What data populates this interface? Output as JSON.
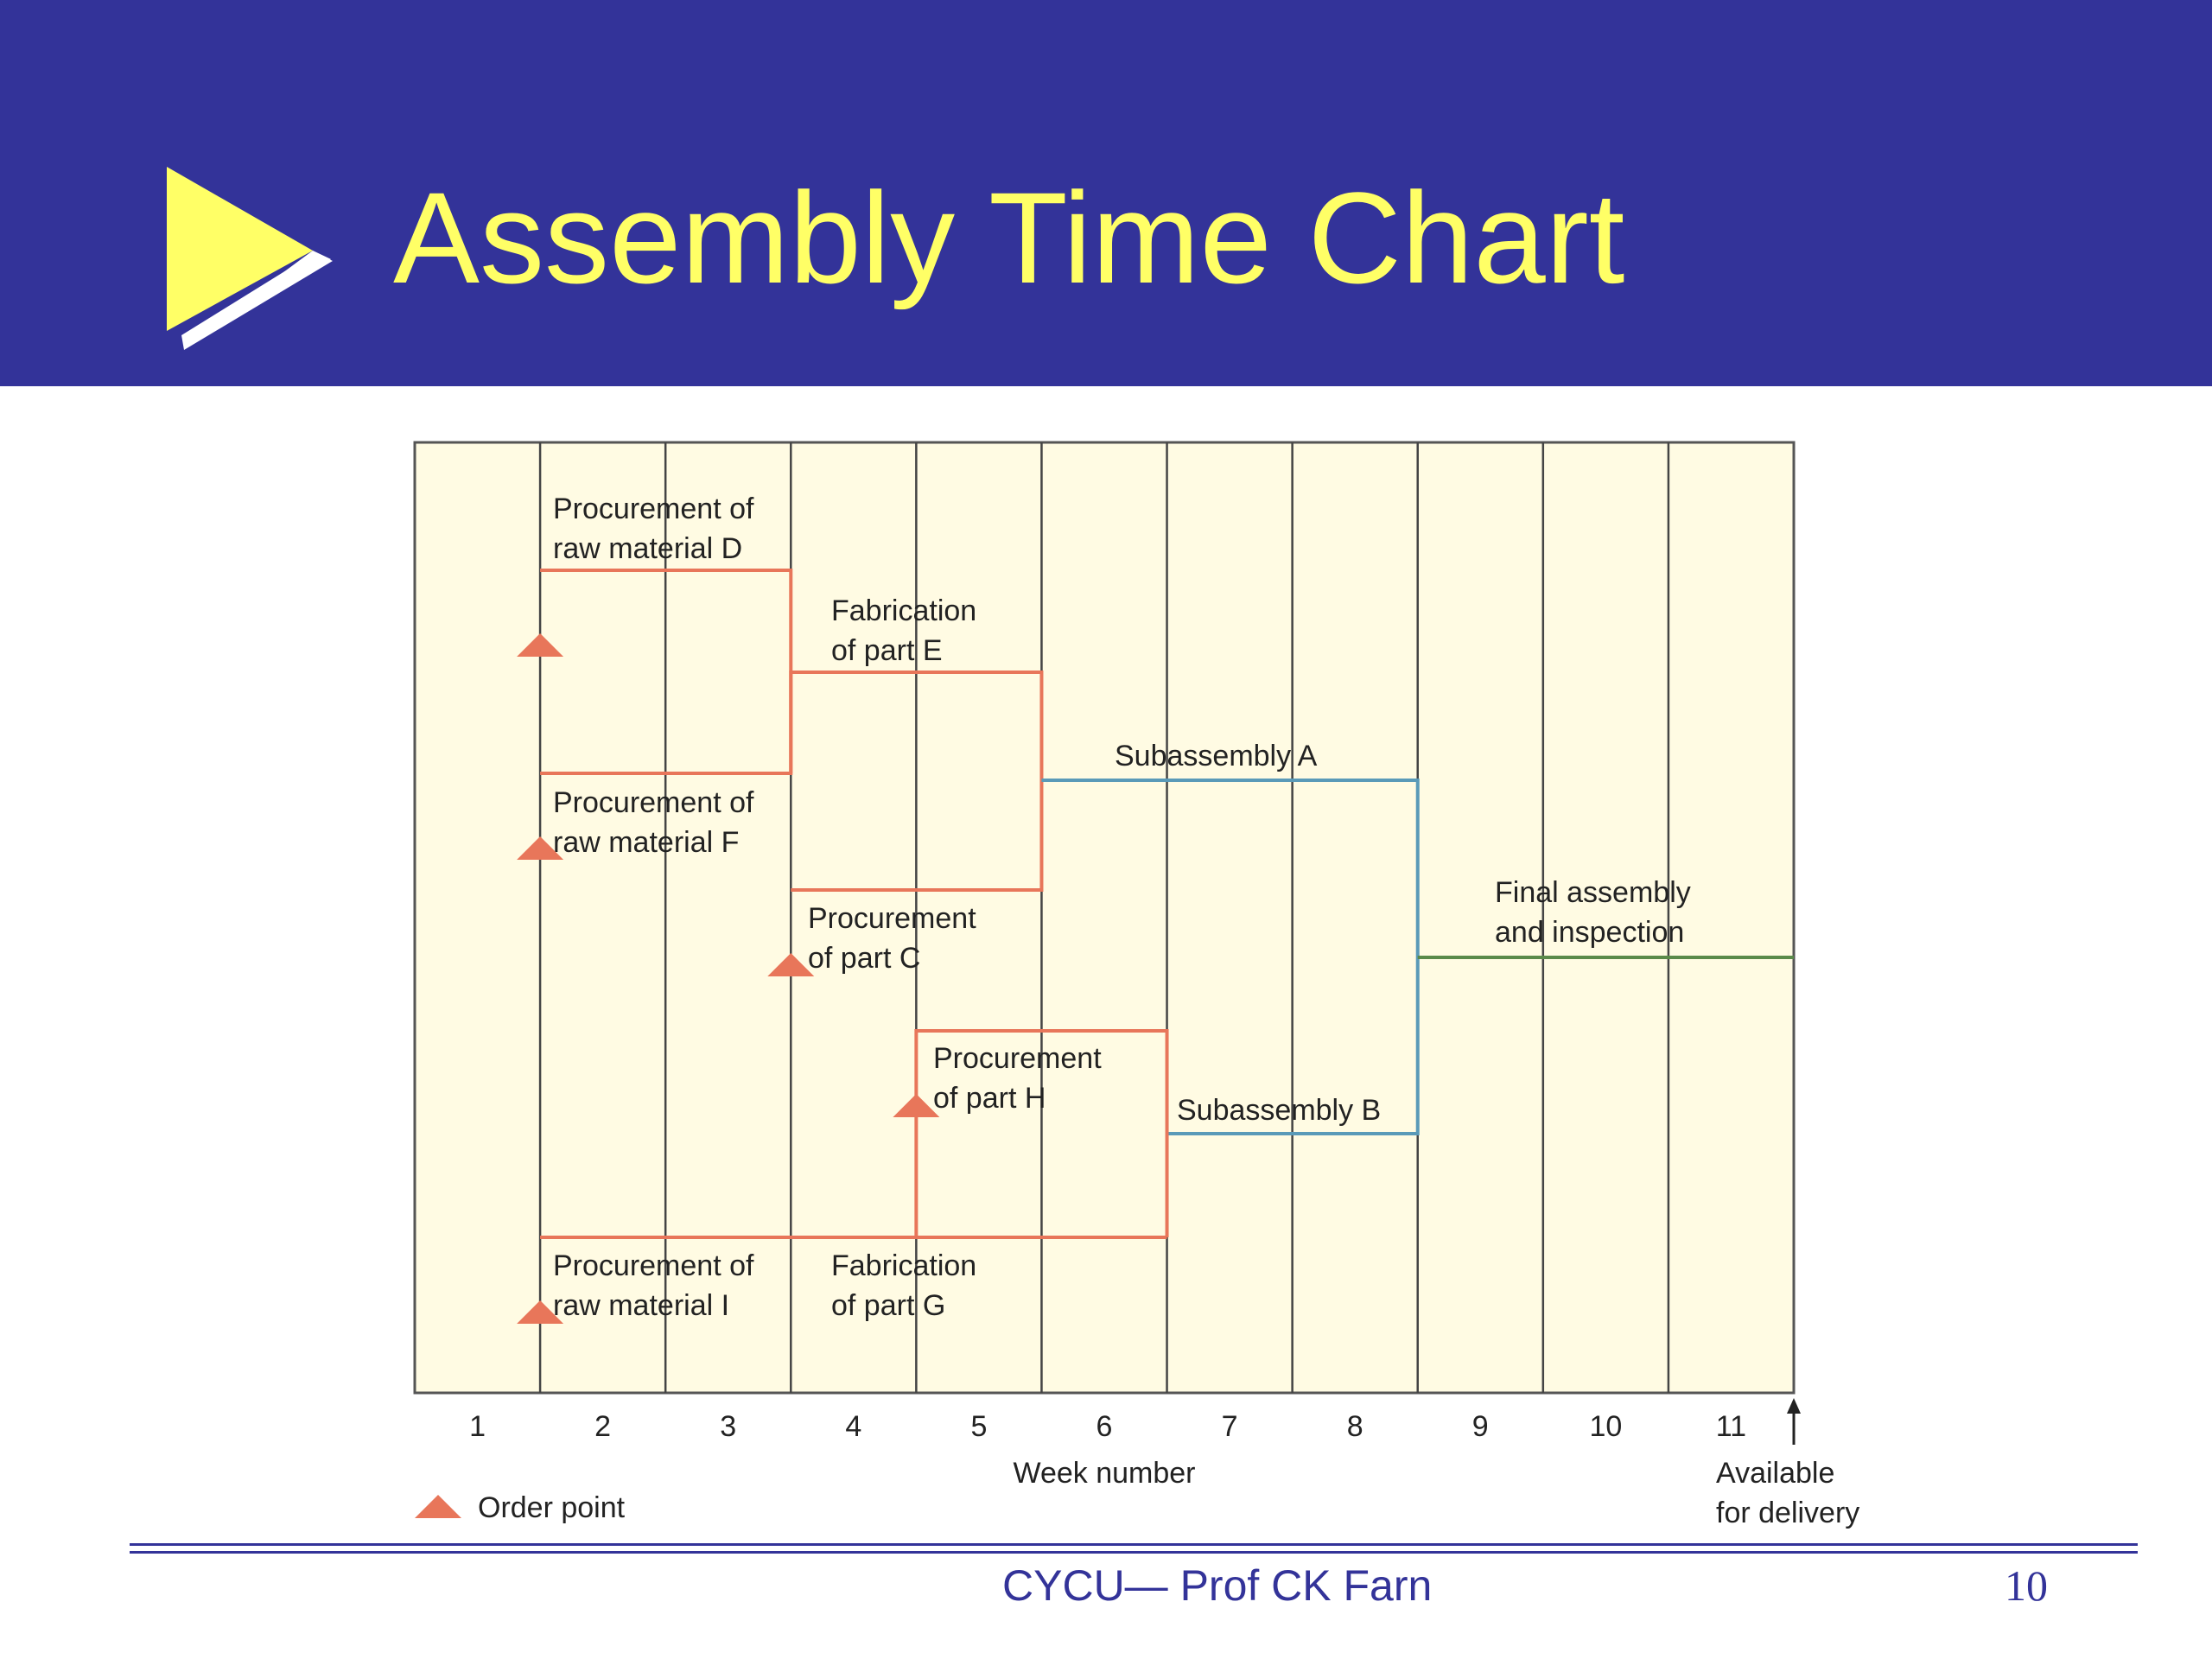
{
  "slide": {
    "title": "Assembly Time Chart",
    "footer": "CYCU— Prof CK Farn",
    "page_number": "10"
  },
  "colors": {
    "header_bg": "#333399",
    "title_text": "#ffff66",
    "chart_bg": "#fffbe3",
    "procurement_line": "#e8765a",
    "subassembly_line": "#5a9ab8",
    "final_line": "#5a8a4a",
    "order_marker": "#e8765a"
  },
  "chart_data": {
    "type": "assembly-time-chart",
    "xlabel": "Week number",
    "x_ticks": [
      "1",
      "2",
      "3",
      "4",
      "5",
      "6",
      "7",
      "8",
      "9",
      "10",
      "11"
    ],
    "weeks": 11,
    "delivery_label": [
      "Available",
      "for delivery"
    ],
    "legend": {
      "marker": "triangle",
      "label": "Order point"
    },
    "activities": [
      {
        "id": "D",
        "label": [
          "Procurement of",
          "raw material D"
        ],
        "start_week": 1,
        "end_week": 3,
        "kind": "procurement",
        "order_point": true
      },
      {
        "id": "F",
        "label": [
          "Procurement of",
          "raw material F"
        ],
        "start_week": 1,
        "end_week": 3,
        "kind": "procurement",
        "order_point": true
      },
      {
        "id": "E",
        "label": [
          "Fabrication",
          "of part E"
        ],
        "start_week": 3,
        "end_week": 5,
        "kind": "fabrication",
        "order_point": false
      },
      {
        "id": "C",
        "label": [
          "Procurement",
          "of part C"
        ],
        "start_week": 3,
        "end_week": 5,
        "kind": "procurement",
        "order_point": true
      },
      {
        "id": "A",
        "label": [
          "Subassembly A"
        ],
        "start_week": 5,
        "end_week": 8,
        "kind": "subassembly",
        "order_point": false
      },
      {
        "id": "H",
        "label": [
          "Procurement",
          "of part H"
        ],
        "start_week": 4,
        "end_week": 6,
        "kind": "procurement",
        "order_point": true
      },
      {
        "id": "I",
        "label": [
          "Procurement of",
          "raw material I"
        ],
        "start_week": 1,
        "end_week": 3,
        "kind": "procurement",
        "order_point": true
      },
      {
        "id": "G",
        "label": [
          "Fabrication",
          "of part G"
        ],
        "start_week": 3,
        "end_week": 6,
        "kind": "fabrication",
        "order_point": false
      },
      {
        "id": "B",
        "label": [
          "Subassembly B"
        ],
        "start_week": 6,
        "end_week": 8,
        "kind": "subassembly",
        "order_point": false
      },
      {
        "id": "Final",
        "label": [
          "Final assembly",
          "and inspection"
        ],
        "start_week": 8,
        "end_week": 11,
        "kind": "final",
        "order_point": false
      }
    ]
  }
}
